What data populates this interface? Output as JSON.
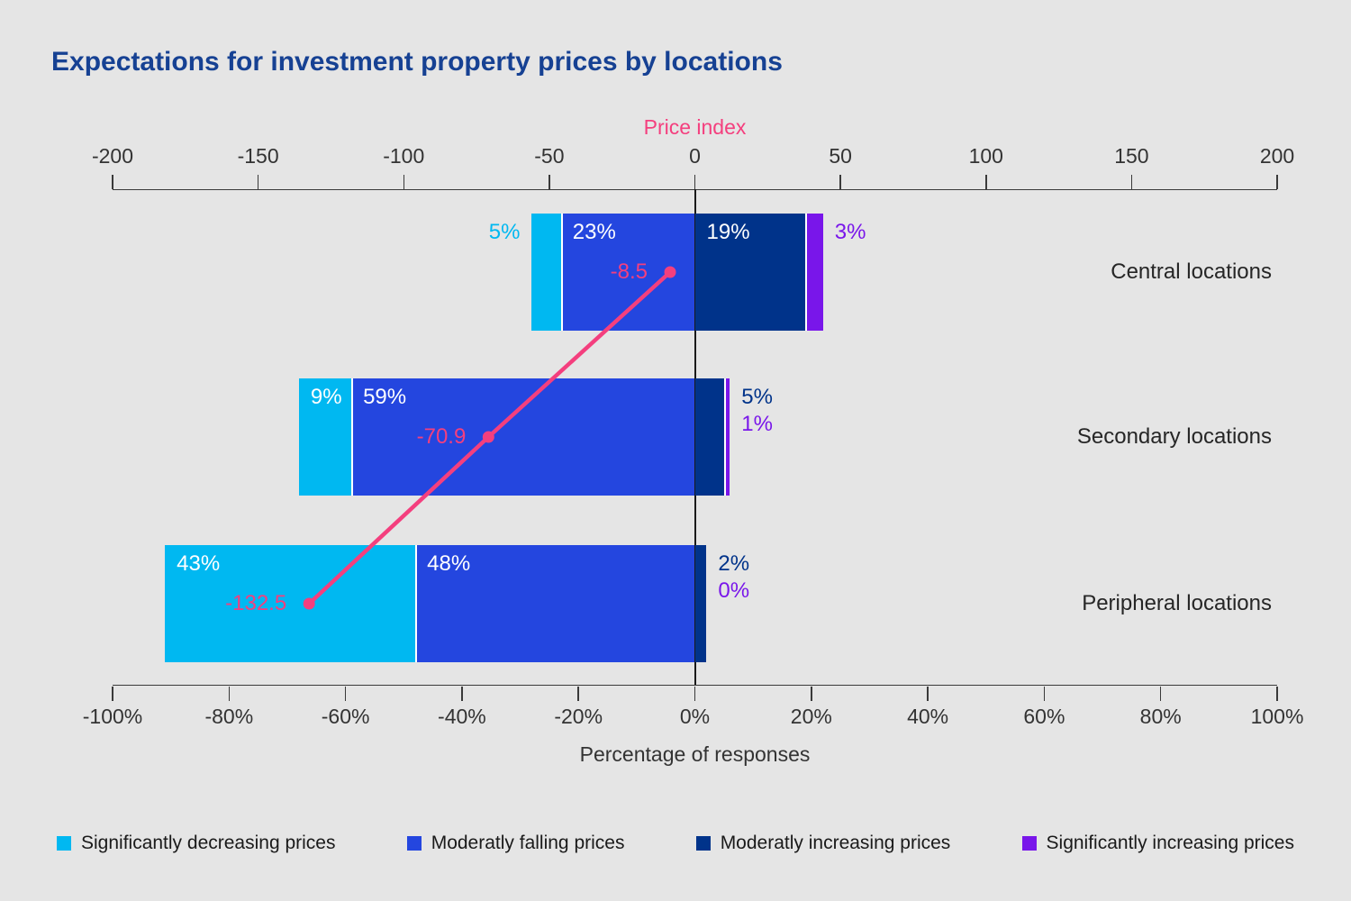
{
  "title": "Expectations for investment property prices by locations",
  "colors": {
    "background": "#E5E5E5",
    "title": "#164193",
    "axis": "#3A3A3A",
    "text": "#262626",
    "zero_line": "#1A1A1A",
    "bar_label_inside": "#FFFFFF",
    "significantly_decreasing": "#00B8F1",
    "moderately_falling": "#2446DF",
    "moderately_increasing": "#00338A",
    "significantly_increasing": "#7916EA",
    "price_line": "#F43F7E"
  },
  "chart_data": {
    "type": "bar",
    "subtype": "horizontal-diverging-stacked-with-line-overlay",
    "title": "Expectations for investment property prices by locations",
    "categories": [
      "Central locations",
      "Secondary locations",
      "Peripheral locations"
    ],
    "series": [
      {
        "key": "significantly_decreasing",
        "name": "Significantly decreasing prices",
        "side": "negative",
        "values": [
          5,
          9,
          43
        ],
        "labels": [
          "5%",
          "9%",
          "43%"
        ],
        "label_placements": [
          "outside-left",
          "inside",
          "inside"
        ]
      },
      {
        "key": "moderately_falling",
        "name": "Moderatly falling prices",
        "side": "negative",
        "values": [
          23,
          59,
          48
        ],
        "labels": [
          "23%",
          "59%",
          "48%"
        ],
        "label_placements": [
          "inside",
          "inside",
          "inside"
        ]
      },
      {
        "key": "moderately_increasing",
        "name": "Moderatly increasing prices",
        "side": "positive",
        "values": [
          19,
          5,
          2
        ],
        "labels": [
          "19%",
          "5%",
          "2%"
        ],
        "label_placements": [
          "inside",
          "outside-right",
          "outside-right"
        ]
      },
      {
        "key": "significantly_increasing",
        "name": "Significantly increasing prices",
        "side": "positive",
        "values": [
          3,
          1,
          0
        ],
        "labels": [
          "3%",
          "1%",
          "0%"
        ],
        "label_placements": [
          "outside-right",
          "outside-right",
          "outside-right"
        ]
      }
    ],
    "line_series": {
      "name": "Price index",
      "values": [
        -8.5,
        -70.9,
        -132.5
      ],
      "labels": [
        "-8.5",
        "-70.9",
        "-132.5"
      ]
    },
    "top_axis": {
      "title": "Price index",
      "min": -200,
      "max": 200,
      "ticks": [
        -200,
        -150,
        -100,
        -50,
        0,
        50,
        100,
        150,
        200
      ],
      "tick_labels": [
        "-200",
        "-150",
        "-100",
        "-50",
        "0",
        "50",
        "100",
        "150",
        "200"
      ]
    },
    "bottom_axis": {
      "title": "Percentage of responses",
      "min": -100,
      "max": 100,
      "ticks": [
        -100,
        -80,
        -60,
        -40,
        -20,
        0,
        20,
        40,
        60,
        80,
        100
      ],
      "tick_labels": [
        "-100%",
        "-80%",
        "-60%",
        "-40%",
        "-20%",
        "0%",
        "20%",
        "40%",
        "60%",
        "80%",
        "100%"
      ]
    },
    "legend": [
      {
        "key": "significantly_decreasing",
        "label": "Significantly decreasing prices"
      },
      {
        "key": "moderately_falling",
        "label": "Moderatly falling prices"
      },
      {
        "key": "moderately_increasing",
        "label": "Moderatly increasing prices"
      },
      {
        "key": "significantly_increasing",
        "label": "Significantly increasing prices"
      }
    ]
  }
}
